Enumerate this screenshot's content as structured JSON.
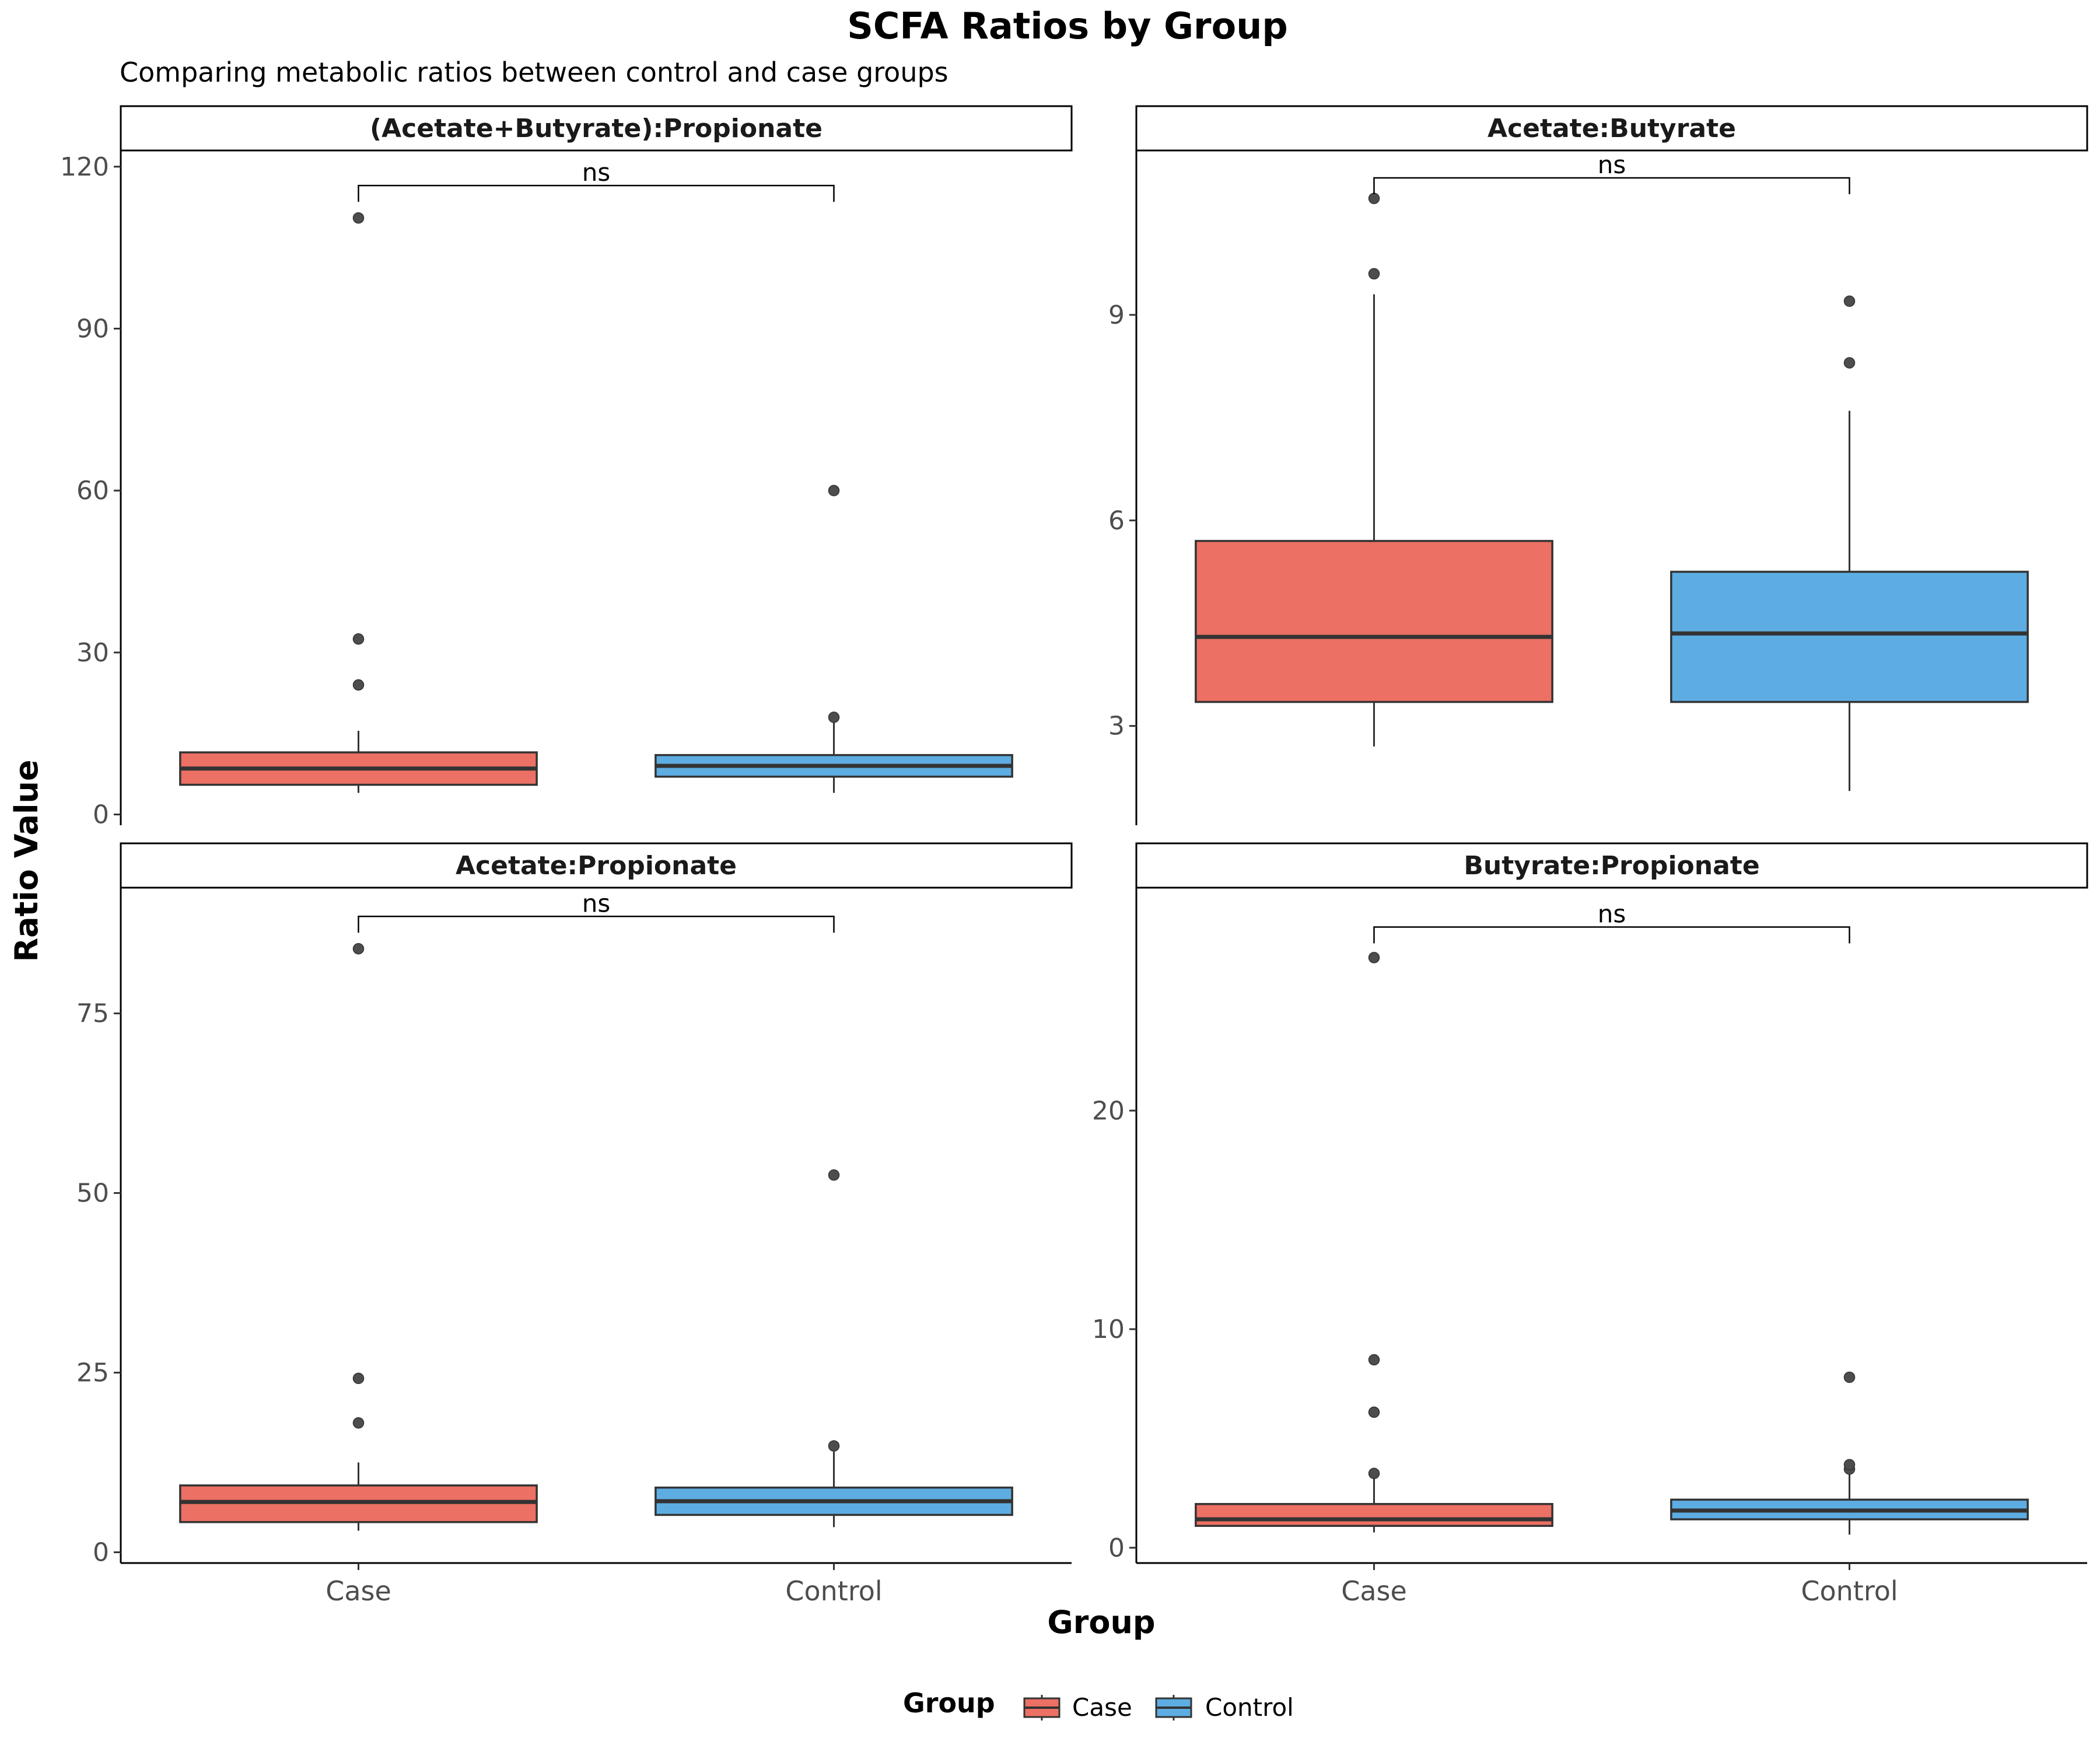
{
  "title": "SCFA Ratios by Group",
  "subtitle": "Comparing metabolic ratios between control and case groups",
  "xlabel": "Group",
  "ylabel": "Ratio Value",
  "legend": {
    "title": "Group",
    "position": "bottom",
    "items": [
      {
        "label": "Case",
        "color": "#EC7063"
      },
      {
        "label": "Control",
        "color": "#5DADE2"
      }
    ]
  },
  "chart_data": [
    {
      "type": "box",
      "panel_title": "(Acetate+Butyrate):Propionate",
      "categories": [
        "Case",
        "Control"
      ],
      "ylim": [
        -2,
        123
      ],
      "yticks": [
        0,
        30,
        60,
        90,
        120
      ],
      "boxes": [
        {
          "group": "Case",
          "color": "#EC7063",
          "whisker_low": 4,
          "q1": 5.5,
          "median": 8.5,
          "q3": 11.5,
          "whisker_high": 15.5,
          "outliers": [
            24,
            32.5,
            110.5
          ]
        },
        {
          "group": "Control",
          "color": "#5DADE2",
          "whisker_low": 4,
          "q1": 7,
          "median": 9,
          "q3": 11,
          "whisker_high": 17,
          "outliers": [
            18,
            60
          ]
        }
      ],
      "significance": {
        "label": "ns",
        "y": 116.5
      }
    },
    {
      "type": "box",
      "panel_title": "Acetate:Butyrate",
      "categories": [
        "Case",
        "Control"
      ],
      "ylim": [
        1.55,
        11.4
      ],
      "yticks": [
        3,
        6,
        9
      ],
      "boxes": [
        {
          "group": "Case",
          "color": "#EC7063",
          "whisker_low": 2.7,
          "q1": 3.35,
          "median": 4.3,
          "q3": 5.7,
          "whisker_high": 9.3,
          "outliers": [
            9.6,
            10.7
          ]
        },
        {
          "group": "Control",
          "color": "#5DADE2",
          "whisker_low": 2.05,
          "q1": 3.35,
          "median": 4.35,
          "q3": 5.25,
          "whisker_high": 7.6,
          "outliers": [
            8.3,
            9.2
          ]
        }
      ],
      "significance": {
        "label": "ns",
        "y": 11.0
      }
    },
    {
      "type": "box",
      "panel_title": "Acetate:Propionate",
      "categories": [
        "Case",
        "Control"
      ],
      "ylim": [
        -1.5,
        92.5
      ],
      "yticks": [
        0,
        25,
        50,
        75
      ],
      "boxes": [
        {
          "group": "Case",
          "color": "#EC7063",
          "whisker_low": 3,
          "q1": 4.2,
          "median": 7,
          "q3": 9.3,
          "whisker_high": 12.5,
          "outliers": [
            18,
            24.2,
            84
          ]
        },
        {
          "group": "Control",
          "color": "#5DADE2",
          "whisker_low": 3.5,
          "q1": 5.2,
          "median": 7.1,
          "q3": 9,
          "whisker_high": 14,
          "outliers": [
            14.8,
            52.5
          ]
        }
      ],
      "significance": {
        "label": "ns",
        "y": 88.5
      }
    },
    {
      "type": "box",
      "panel_title": "Butyrate:Propionate",
      "categories": [
        "Case",
        "Control"
      ],
      "ylim": [
        -0.7,
        30.2
      ],
      "yticks": [
        0,
        10,
        20
      ],
      "boxes": [
        {
          "group": "Case",
          "color": "#EC7063",
          "whisker_low": 0.7,
          "q1": 1,
          "median": 1.3,
          "q3": 2,
          "whisker_high": 3.2,
          "outliers": [
            3.4,
            6.2,
            8.6,
            27
          ]
        },
        {
          "group": "Control",
          "color": "#5DADE2",
          "whisker_low": 0.6,
          "q1": 1.3,
          "median": 1.7,
          "q3": 2.2,
          "whisker_high": 3.4,
          "outliers": [
            3.6,
            3.8,
            7.8
          ]
        }
      ],
      "significance": {
        "label": "ns",
        "y": 28.4
      }
    }
  ]
}
